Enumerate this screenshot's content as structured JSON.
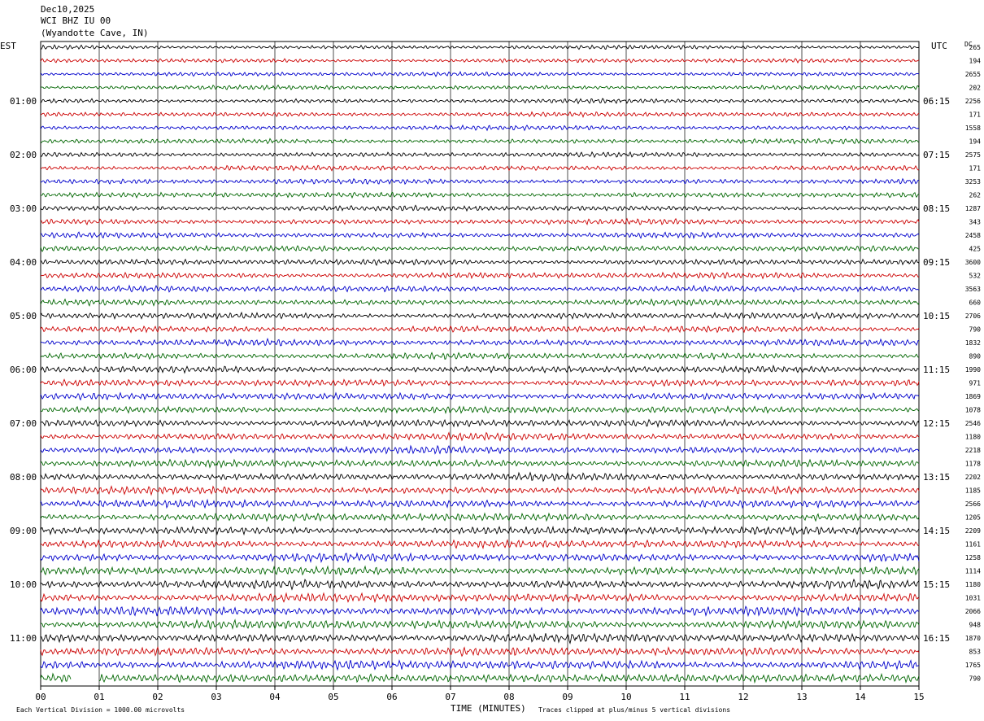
{
  "header": {
    "date": "Dec10,2025",
    "station": "WCI BHZ IU 00",
    "location": "(Wyandotte Cave, IN)"
  },
  "left_zone": "EST",
  "right_zone": "UTC",
  "dc_label": "DC",
  "footer": {
    "xlabel": "TIME (MINUTES)",
    "scale_note": "Each Vertical Division = 1000.00 microvolts",
    "clip_note": "Traces clipped at plus/minus 5 vertical divisions"
  },
  "colors": {
    "black": "#000000",
    "red": "#cc0000",
    "blue": "#0000cc",
    "green": "#006600"
  },
  "chart_data": {
    "type": "line",
    "xlim": [
      0,
      15
    ],
    "x_ticks": [
      "00",
      "01",
      "02",
      "03",
      "04",
      "05",
      "06",
      "07",
      "08",
      "09",
      "10",
      "11",
      "12",
      "13",
      "14",
      "15"
    ],
    "left_hour_labels": [
      "01:00",
      "02:00",
      "03:00",
      "04:00",
      "05:00",
      "06:00",
      "07:00",
      "08:00",
      "09:00",
      "10:00",
      "11:00"
    ],
    "right_hour_labels": [
      "06:15",
      "07:15",
      "08:15",
      "09:15",
      "10:15",
      "11:15",
      "12:15",
      "13:15",
      "14:15",
      "15:15",
      "16:15"
    ],
    "trace_colors": [
      "black",
      "red",
      "blue",
      "green"
    ],
    "dc_values": [
      "265",
      "194",
      "2655",
      "202",
      "2256",
      "171",
      "1558",
      "194",
      "2575",
      "171",
      "3253",
      "262",
      "1287",
      "343",
      "2458",
      "425",
      "3600",
      "532",
      "3563",
      "660",
      "2706",
      "790",
      "1832",
      "890",
      "1990",
      "971",
      "1869",
      "1078",
      "2546",
      "1180",
      "2218",
      "1178",
      "2202",
      "1185",
      "2566",
      "1205",
      "2209",
      "1161",
      "1258",
      "1114",
      "1180",
      "1031",
      "2066",
      "948",
      "1870",
      "853",
      "1765",
      "790"
    ]
  }
}
